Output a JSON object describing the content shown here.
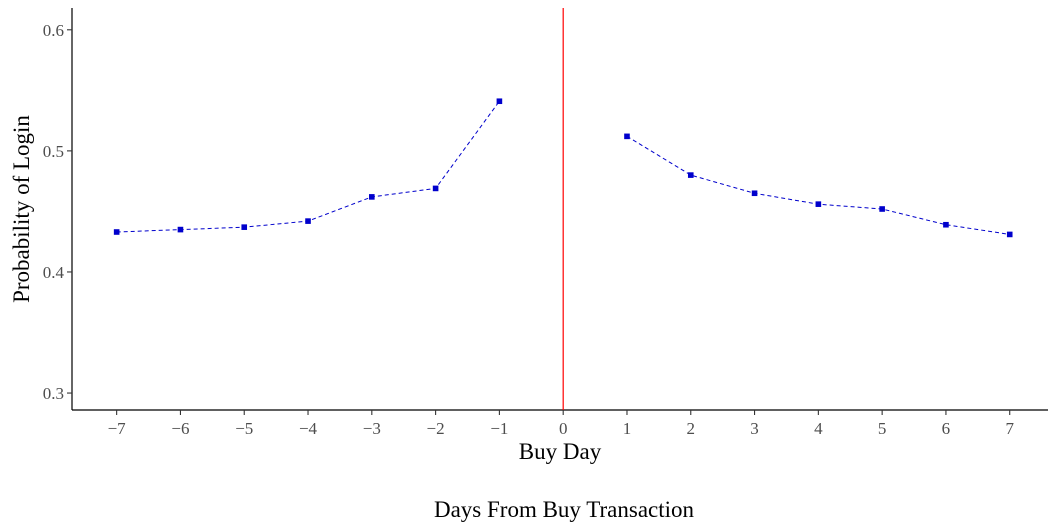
{
  "chart_data": {
    "type": "line",
    "title": "",
    "xlabel": "Buy Day",
    "ylabel": "Probability of Login",
    "caption": "Days From Buy Transaction",
    "xlim": [
      -7.7,
      7.6
    ],
    "ylim": [
      0.286,
      0.618
    ],
    "x_ticks": [
      -7,
      -6,
      -5,
      -4,
      -3,
      -2,
      -1,
      0,
      1,
      2,
      3,
      4,
      5,
      6,
      7
    ],
    "x_tick_labels": [
      "−7",
      "−6",
      "−5",
      "−4",
      "−3",
      "−2",
      "−1",
      "0",
      "1",
      "2",
      "3",
      "4",
      "5",
      "6",
      "7"
    ],
    "y_ticks": [
      0.3,
      0.4,
      0.5,
      0.6
    ],
    "y_tick_labels": [
      "0.3",
      "0.4",
      "0.5",
      "0.6"
    ],
    "grid": false,
    "reference_line": {
      "x": 0,
      "color": "#ff0000"
    },
    "series_color": "#0000cc",
    "series": [
      {
        "x": [
          -7,
          -6,
          -5,
          -4,
          -3,
          -2,
          -1
        ],
        "y": [
          0.433,
          0.435,
          0.437,
          0.442,
          0.462,
          0.469,
          0.541
        ]
      },
      {
        "x": [
          1,
          2,
          3,
          4,
          5,
          6,
          7
        ],
        "y": [
          0.512,
          0.48,
          0.465,
          0.456,
          0.452,
          0.439,
          0.431
        ]
      }
    ]
  }
}
